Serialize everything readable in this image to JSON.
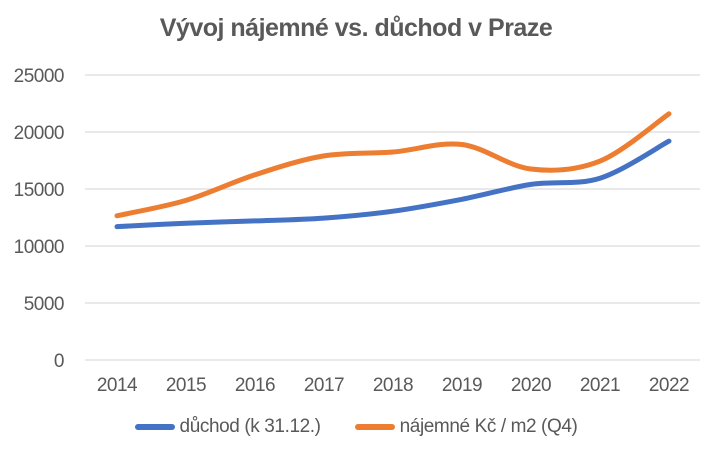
{
  "title": "Vývoj nájemné vs. důchod v Praze",
  "colors": {
    "text": "#595959",
    "grid": "#e2e2e2",
    "background": "#ffffff",
    "series_blue": "#4472C4",
    "series_orange": "#ED7D31"
  },
  "chart_data": {
    "type": "line",
    "title": "Vývoj nájemné vs. důchod v Praze",
    "x": [
      2014,
      2015,
      2016,
      2017,
      2018,
      2019,
      2020,
      2021,
      2022
    ],
    "series": [
      {
        "name": "důchod (k 31.12.)",
        "color": "#4472C4",
        "values": [
          11700,
          12000,
          12200,
          12450,
          13050,
          14100,
          15400,
          15950,
          19200
        ]
      },
      {
        "name": "nájemné Kč / m2 (Q4)",
        "color": "#ED7D31",
        "values": [
          12650,
          14000,
          16250,
          17900,
          18250,
          18900,
          16750,
          17450,
          21600
        ]
      }
    ],
    "xlabel": "",
    "ylabel": "",
    "ylim": [
      0,
      25000
    ],
    "yticks": [
      0,
      5000,
      10000,
      15000,
      20000,
      25000
    ],
    "ytick_labels": [
      "0",
      "5000",
      "10000",
      "15000",
      "20000",
      "25000"
    ],
    "xtick_labels": [
      "2014",
      "2015",
      "2016",
      "2017",
      "2018",
      "2019",
      "2020",
      "2021",
      "2022"
    ],
    "grid": "horizontal",
    "legend_position": "bottom",
    "smooth": true
  }
}
